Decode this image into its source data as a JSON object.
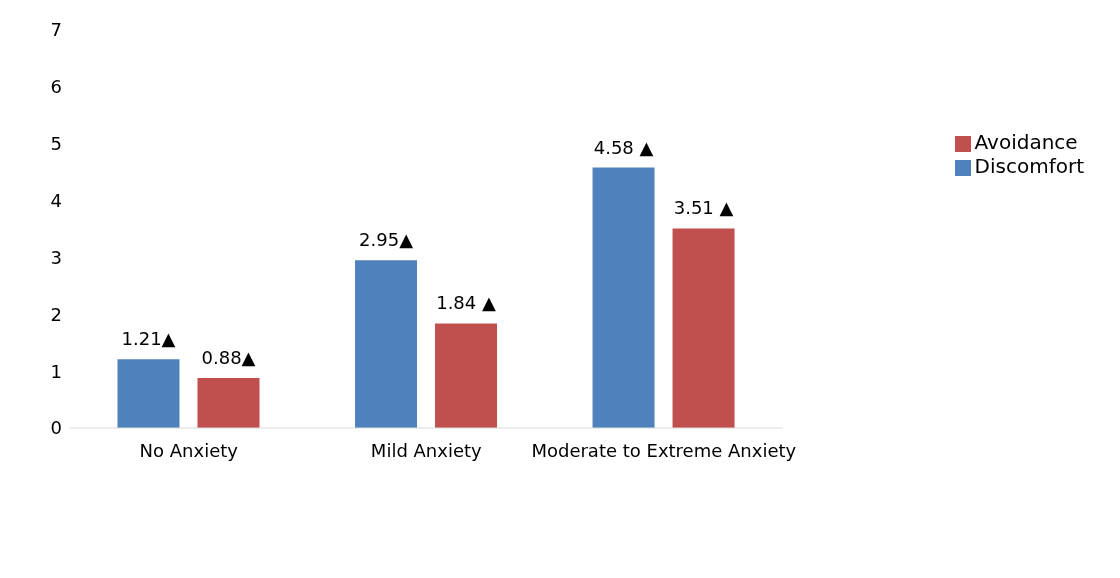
{
  "chart_data": {
    "type": "bar",
    "categories": [
      "No Anxiety",
      "Mild Anxiety",
      "Moderate to Extreme Anxiety"
    ],
    "series": [
      {
        "name": "Discomfort",
        "color": "#4f81bd",
        "values": [
          1.21,
          2.95,
          4.58
        ],
        "value_labels": [
          "1.21▲",
          "2.95▲",
          "4.58 ▲"
        ]
      },
      {
        "name": "Avoidance",
        "color": "#c0504d",
        "values": [
          0.88,
          1.84,
          3.51
        ],
        "value_labels": [
          "0.88▲",
          "1.84 ▲",
          "3.51 ▲"
        ]
      }
    ],
    "ylim": [
      0,
      7
    ],
    "yticks": [
      0,
      1,
      2,
      3,
      4,
      5,
      6,
      7
    ],
    "grid": false,
    "legend": "right"
  }
}
